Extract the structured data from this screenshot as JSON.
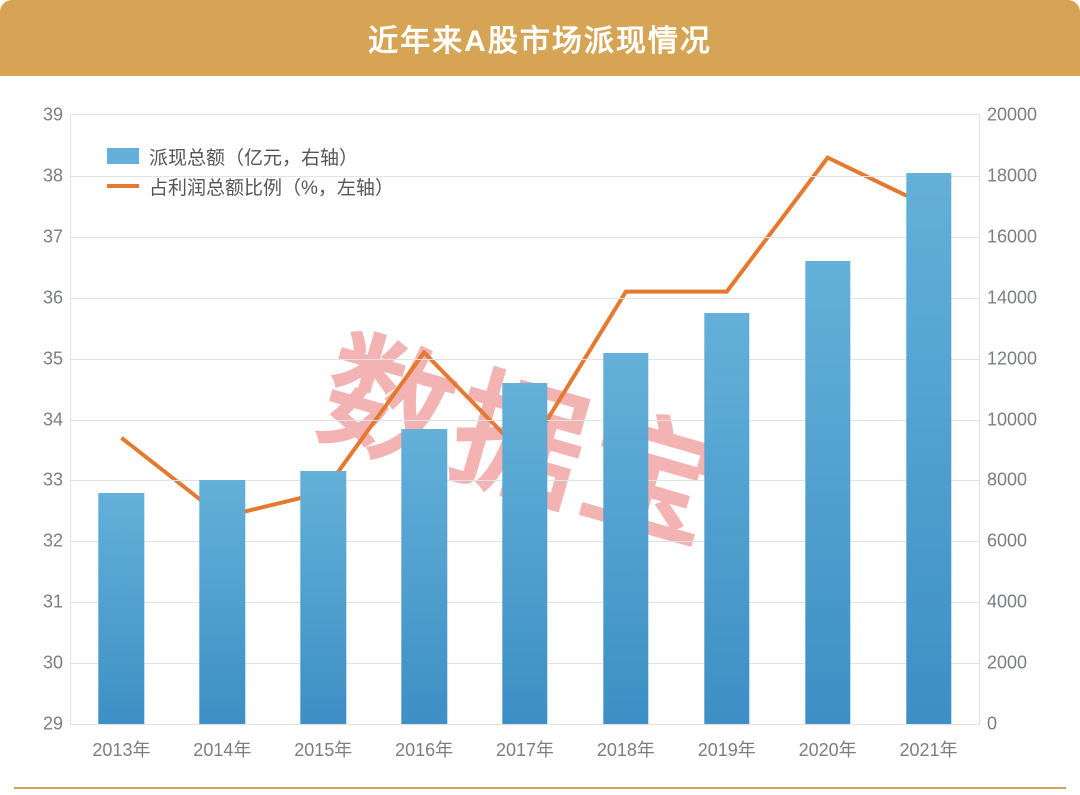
{
  "title": "近年来A股市场派现情况",
  "watermark": "数据宝",
  "colors": {
    "title_bg": "#d5a454",
    "grid": "#dfe3e6",
    "tick_text": "#7a7e82",
    "bar_top": "#64b0d9",
    "bar_bottom": "#3d8fc4",
    "line": "#e4792f",
    "watermark": "#e33a3a",
    "background": "#ffffff"
  },
  "chart": {
    "type": "bar+line",
    "categories": [
      "2013年",
      "2014年",
      "2015年",
      "2016年",
      "2017年",
      "2018年",
      "2019年",
      "2020年",
      "2021年"
    ],
    "bars": {
      "label": "派现总额（亿元，右轴）",
      "axis": "right",
      "values": [
        7600,
        8000,
        8300,
        9700,
        11200,
        12200,
        13500,
        15200,
        18100
      ],
      "bar_width_fraction": 0.45
    },
    "line": {
      "label": "占利润总额比例（%，左轴）",
      "axis": "left",
      "values": [
        33.7,
        32.4,
        32.8,
        35.1,
        33.4,
        36.1,
        36.1,
        38.3,
        37.5
      ],
      "line_width": 4
    },
    "y_left": {
      "min": 29,
      "max": 39,
      "step": 1
    },
    "y_right": {
      "min": 0,
      "max": 20000,
      "step": 2000
    },
    "legend_position": "top-left-inside",
    "label_fontsize": 18
  }
}
